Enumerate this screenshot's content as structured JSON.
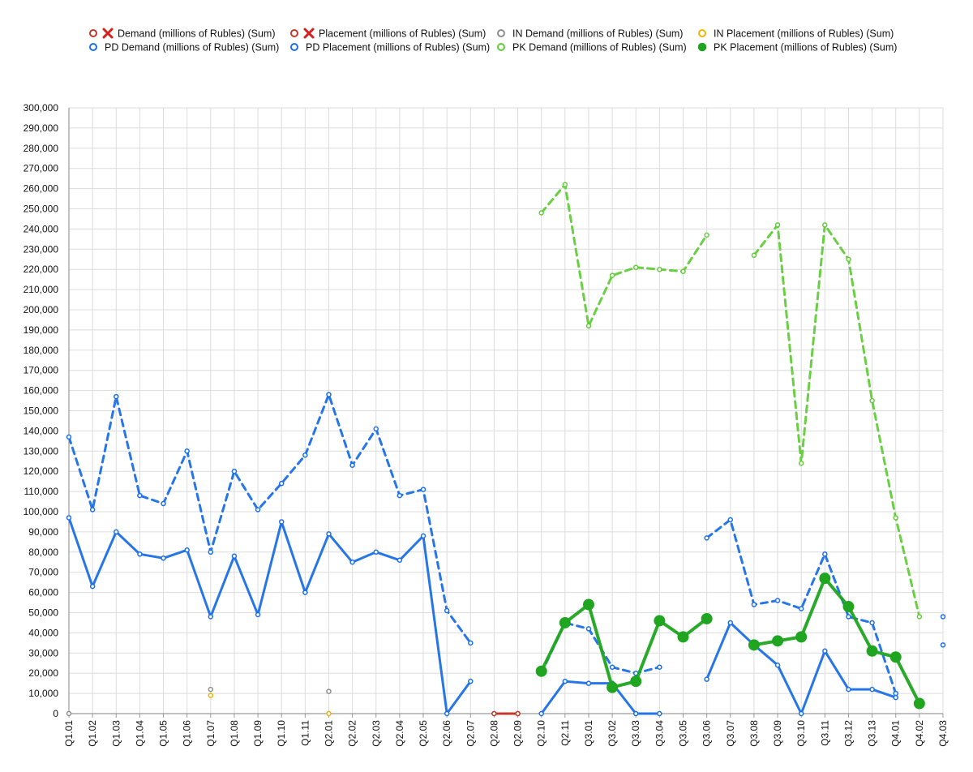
{
  "chart_data": {
    "type": "line",
    "title": "",
    "xlabel": "",
    "ylabel": "",
    "ylim": [
      0,
      300000
    ],
    "ytick_step": 10000,
    "grid": true,
    "legend_position": "top",
    "x": [
      "Q1.01",
      "Q1.02",
      "Q1.03",
      "Q1.04",
      "Q1.05",
      "Q1.06",
      "Q1.07",
      "Q1.08",
      "Q1.09",
      "Q1.10",
      "Q1.11",
      "Q2.01",
      "Q2.02",
      "Q2.03",
      "Q2.04",
      "Q2.05",
      "Q2.06",
      "Q2.07",
      "Q2.08",
      "Q2.09",
      "Q2.10",
      "Q2.11",
      "Q3.01",
      "Q3.02",
      "Q3.03",
      "Q3.04",
      "Q3.05",
      "Q3.06",
      "Q3.07",
      "Q3.08",
      "Q3.09",
      "Q3.10",
      "Q3.11",
      "Q3.12",
      "Q3.13",
      "Q4.01",
      "Q4.02",
      "Q4.03"
    ],
    "series": [
      {
        "name": "Demand (millions of Rubles) (Sum)",
        "color": "#c0392b",
        "marker": "x",
        "dashed": false,
        "values": [
          null,
          null,
          null,
          null,
          null,
          null,
          null,
          null,
          null,
          null,
          null,
          null,
          null,
          null,
          null,
          null,
          null,
          null,
          0,
          0,
          null,
          null,
          null,
          null,
          null,
          null,
          null,
          null,
          null,
          null,
          null,
          null,
          null,
          null,
          null,
          null,
          null,
          null
        ]
      },
      {
        "name": "Placement (millions of Rubles) (Sum)",
        "color": "#c0392b",
        "marker": "x",
        "dashed": false,
        "values": [
          null,
          null,
          null,
          null,
          null,
          null,
          null,
          null,
          null,
          null,
          null,
          null,
          null,
          null,
          null,
          null,
          null,
          null,
          0,
          0,
          null,
          null,
          null,
          null,
          null,
          null,
          null,
          null,
          null,
          null,
          null,
          null,
          null,
          null,
          null,
          null,
          null,
          null
        ]
      },
      {
        "name": "IN Demand (millions of Rubles) (Sum)",
        "color": "#8e8e8e",
        "marker": "circle",
        "dashed": false,
        "values": [
          0,
          null,
          null,
          null,
          null,
          null,
          12000,
          null,
          null,
          null,
          null,
          11000,
          null,
          null,
          null,
          null,
          null,
          null,
          null,
          null,
          null,
          null,
          null,
          null,
          null,
          null,
          null,
          null,
          null,
          null,
          null,
          null,
          null,
          null,
          null,
          null,
          null,
          null
        ]
      },
      {
        "name": "IN Placement (millions of Rubles) (Sum)",
        "color": "#f0b400",
        "marker": "circle",
        "dashed": false,
        "values": [
          null,
          null,
          null,
          null,
          null,
          null,
          9000,
          null,
          null,
          null,
          null,
          0,
          null,
          null,
          null,
          null,
          null,
          null,
          null,
          null,
          null,
          null,
          null,
          null,
          null,
          null,
          null,
          null,
          null,
          null,
          null,
          null,
          null,
          null,
          null,
          null,
          null,
          null
        ]
      },
      {
        "name": "PD Demand (millions of Rubles) (Sum)",
        "color": "#1a6fe8",
        "marker": "circle",
        "dashed": true,
        "values": [
          137000,
          101000,
          157000,
          108000,
          104000,
          130000,
          80000,
          120000,
          101000,
          114000,
          128000,
          158000,
          123000,
          141000,
          108000,
          111000,
          51000,
          35000,
          null,
          null,
          20000,
          45000,
          42000,
          23000,
          20000,
          23000,
          null,
          87000,
          96000,
          54000,
          56000,
          52000,
          79000,
          48000,
          45000,
          10000,
          null,
          48000
        ]
      },
      {
        "name": "PD Placement (millions of Rubles) (Sum)",
        "color": "#1a6fe8",
        "marker": "circle",
        "dashed": false,
        "values": [
          97000,
          63000,
          90000,
          79000,
          77000,
          81000,
          48000,
          78000,
          49000,
          95000,
          60000,
          89000,
          75000,
          80000,
          76000,
          88000,
          0,
          16000,
          null,
          null,
          0,
          16000,
          15000,
          15000,
          0,
          0,
          null,
          17000,
          45000,
          34000,
          24000,
          0,
          31000,
          12000,
          12000,
          8000,
          null,
          34000
        ]
      },
      {
        "name": "PK Demand (millions of Rubles) (Sum)",
        "color": "#62cc3a",
        "marker": "circle",
        "dashed": true,
        "values": [
          null,
          null,
          null,
          null,
          null,
          null,
          null,
          null,
          null,
          null,
          null,
          null,
          null,
          null,
          null,
          null,
          null,
          null,
          null,
          null,
          248000,
          262000,
          192000,
          217000,
          221000,
          220000,
          219000,
          237000,
          null,
          227000,
          242000,
          124000,
          242000,
          225000,
          155000,
          97000,
          48000,
          null
        ]
      },
      {
        "name": "PK Placement (millions of Rubles) (Sum)",
        "color": "#1fa51f",
        "marker": "dot",
        "dashed": false,
        "values": [
          null,
          null,
          null,
          null,
          null,
          null,
          null,
          null,
          null,
          null,
          null,
          null,
          null,
          null,
          null,
          null,
          null,
          null,
          null,
          null,
          21000,
          45000,
          54000,
          13000,
          16000,
          46000,
          38000,
          47000,
          null,
          34000,
          36000,
          38000,
          67000,
          53000,
          31000,
          28000,
          5000,
          null
        ]
      }
    ]
  }
}
